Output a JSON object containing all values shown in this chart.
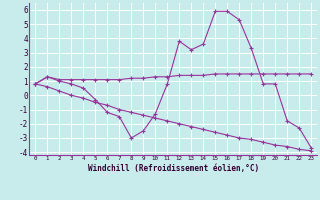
{
  "xlabel": "Windchill (Refroidissement éolien,°C)",
  "bg_color": "#c8ecec",
  "grid_color": "#ffffff",
  "line_color": "#993399",
  "xlim": [
    -0.5,
    23.5
  ],
  "ylim": [
    -4.2,
    6.5
  ],
  "yticks": [
    -4,
    -3,
    -2,
    -1,
    0,
    1,
    2,
    3,
    4,
    5,
    6
  ],
  "xtick_labels": [
    "0",
    "1",
    "2",
    "3",
    "4",
    "5",
    "6",
    "7",
    "8",
    "9",
    "10",
    "11",
    "12",
    "13",
    "14",
    "15",
    "16",
    "17",
    "18",
    "19",
    "20",
    "21",
    "22",
    "23"
  ],
  "series1_x": [
    0,
    1,
    2,
    3,
    4,
    5,
    6,
    7,
    8,
    9,
    10,
    11,
    12,
    13,
    14,
    15,
    16,
    17,
    18,
    19,
    20,
    21,
    22,
    23
  ],
  "series1_y": [
    0.8,
    1.3,
    1.1,
    1.1,
    1.1,
    1.1,
    1.1,
    1.1,
    1.2,
    1.2,
    1.3,
    1.3,
    1.4,
    1.4,
    1.4,
    1.5,
    1.5,
    1.5,
    1.5,
    1.5,
    1.5,
    1.5,
    1.5,
    1.5
  ],
  "series2_x": [
    0,
    1,
    2,
    3,
    4,
    5,
    6,
    7,
    8,
    9,
    10,
    11,
    12,
    13,
    14,
    15,
    16,
    17,
    18,
    19,
    20,
    21,
    22,
    23
  ],
  "series2_y": [
    0.8,
    1.3,
    1.0,
    0.8,
    0.5,
    -0.3,
    -1.2,
    -1.5,
    -3.0,
    -2.5,
    -1.3,
    0.8,
    3.8,
    3.2,
    3.6,
    5.9,
    5.9,
    5.3,
    3.3,
    0.8,
    0.8,
    -1.8,
    -2.3,
    -3.7
  ],
  "series3_x": [
    0,
    1,
    2,
    3,
    4,
    5,
    6,
    7,
    8,
    9,
    10,
    11,
    12,
    13,
    14,
    15,
    16,
    17,
    18,
    19,
    20,
    21,
    22,
    23
  ],
  "series3_y": [
    0.8,
    0.6,
    0.3,
    0.0,
    -0.2,
    -0.5,
    -0.7,
    -1.0,
    -1.2,
    -1.4,
    -1.6,
    -1.8,
    -2.0,
    -2.2,
    -2.4,
    -2.6,
    -2.8,
    -3.0,
    -3.1,
    -3.3,
    -3.5,
    -3.6,
    -3.8,
    -3.9
  ]
}
